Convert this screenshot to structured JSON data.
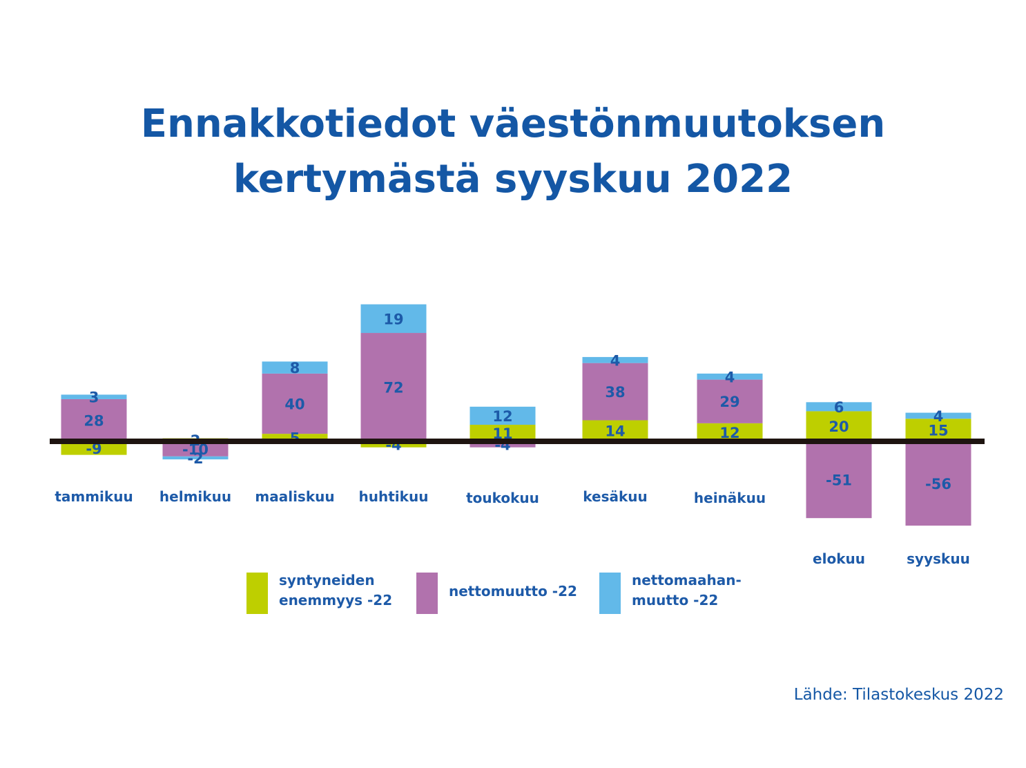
{
  "chart_data": {
    "type": "bar",
    "stacked": true,
    "title_lines": [
      "Ennakkotiedot väestönmuutoksen",
      "kertymästä syyskuu 2022"
    ],
    "categories": [
      "tammikuu",
      "helmikuu",
      "maaliskuu",
      "huhtikuu",
      "toukokuu",
      "kesäkuu",
      "heinäkuu",
      "elokuu",
      "syyskuu"
    ],
    "series": [
      {
        "name": "syntyneiden enemmyys -22",
        "color": "#becf00",
        "values": [
          -9,
          2,
          5,
          -4,
          11,
          14,
          12,
          20,
          15
        ]
      },
      {
        "name": "nettomuutto -22",
        "color": "#b172ad",
        "values": [
          28,
          -10,
          40,
          72,
          -4,
          38,
          29,
          -51,
          -56
        ]
      },
      {
        "name": "nettomaahanmuutto -22",
        "color": "#62b9e9",
        "values": [
          3,
          -2,
          8,
          19,
          12,
          4,
          4,
          6,
          4
        ]
      }
    ],
    "legend": {
      "position": "bottom-center",
      "labels": [
        [
          "syntyneiden",
          "enemmyys -22"
        ],
        [
          "nettomuutto -22"
        ],
        [
          "nettomaahan-",
          "muutto -22"
        ]
      ]
    },
    "source": "Lähde: Tilastokeskus 2022",
    "zero_line_color": "#1e1410"
  }
}
